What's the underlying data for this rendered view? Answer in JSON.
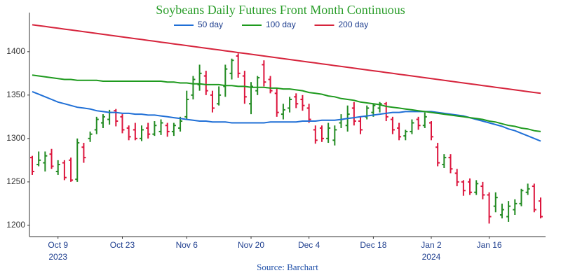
{
  "chart_data": {
    "type": "ohlc",
    "title": "Soybeans Daily Futures Front Month Continuous",
    "source": "Source: Barchart",
    "categories": [
      "2023-10-03",
      "2023-10-04",
      "2023-10-05",
      "2023-10-06",
      "2023-10-09",
      "2023-10-10",
      "2023-10-11",
      "2023-10-12",
      "2023-10-13",
      "2023-10-16",
      "2023-10-17",
      "2023-10-18",
      "2023-10-19",
      "2023-10-20",
      "2023-10-23",
      "2023-10-24",
      "2023-10-25",
      "2023-10-26",
      "2023-10-27",
      "2023-10-30",
      "2023-10-31",
      "2023-11-01",
      "2023-11-02",
      "2023-11-03",
      "2023-11-06",
      "2023-11-07",
      "2023-11-08",
      "2023-11-09",
      "2023-11-10",
      "2023-11-13",
      "2023-11-14",
      "2023-11-15",
      "2023-11-16",
      "2023-11-17",
      "2023-11-20",
      "2023-11-21",
      "2023-11-22",
      "2023-11-24",
      "2023-11-27",
      "2023-11-28",
      "2023-11-29",
      "2023-11-30",
      "2023-12-01",
      "2023-12-04",
      "2023-12-05",
      "2023-12-06",
      "2023-12-07",
      "2023-12-08",
      "2023-12-11",
      "2023-12-12",
      "2023-12-13",
      "2023-12-14",
      "2023-12-15",
      "2023-12-18",
      "2023-12-19",
      "2023-12-20",
      "2023-12-21",
      "2023-12-22",
      "2023-12-26",
      "2023-12-27",
      "2023-12-28",
      "2023-12-29",
      "2024-01-02",
      "2024-01-03",
      "2024-01-04",
      "2024-01-05",
      "2024-01-08",
      "2024-01-09",
      "2024-01-10",
      "2024-01-11",
      "2024-01-12",
      "2024-01-16",
      "2024-01-17",
      "2024-01-18",
      "2024-01-19",
      "2024-01-22",
      "2024-01-23",
      "2024-01-24",
      "2024-01-25",
      "2024-01-26"
    ],
    "open": [
      1278,
      1270,
      1272,
      1282,
      1262,
      1272,
      1275,
      1253,
      1290,
      1300,
      1310,
      1318,
      1322,
      1332,
      1325,
      1312,
      1310,
      1300,
      1312,
      1305,
      1308,
      1315,
      1308,
      1312,
      1325,
      1350,
      1362,
      1372,
      1350,
      1340,
      1360,
      1375,
      1395,
      1372,
      1340,
      1355,
      1385,
      1368,
      1352,
      1328,
      1335,
      1348,
      1345,
      1335,
      1310,
      1312,
      1300,
      1298,
      1318,
      1315,
      1335,
      1320,
      1325,
      1330,
      1335,
      1340,
      1322,
      1312,
      1303,
      1308,
      1322,
      1315,
      1318,
      1290,
      1270,
      1278,
      1260,
      1250,
      1250,
      1238,
      1245,
      1235,
      1222,
      1212,
      1210,
      1218,
      1225,
      1238,
      1245,
      1228
    ],
    "high": [
      1280,
      1285,
      1285,
      1288,
      1275,
      1275,
      1278,
      1300,
      1295,
      1308,
      1325,
      1328,
      1333,
      1334,
      1328,
      1315,
      1318,
      1315,
      1318,
      1320,
      1322,
      1318,
      1318,
      1325,
      1355,
      1372,
      1385,
      1378,
      1355,
      1360,
      1385,
      1392,
      1398,
      1378,
      1365,
      1372,
      1390,
      1372,
      1358,
      1340,
      1348,
      1352,
      1350,
      1340,
      1315,
      1315,
      1318,
      1315,
      1328,
      1338,
      1342,
      1325,
      1338,
      1340,
      1342,
      1342,
      1325,
      1318,
      1310,
      1322,
      1325,
      1330,
      1320,
      1295,
      1282,
      1282,
      1265,
      1252,
      1254,
      1252,
      1250,
      1238,
      1238,
      1225,
      1228,
      1230,
      1242,
      1248,
      1248,
      1232
    ],
    "low": [
      1258,
      1268,
      1262,
      1265,
      1258,
      1252,
      1250,
      1250,
      1272,
      1296,
      1305,
      1312,
      1316,
      1314,
      1306,
      1298,
      1298,
      1297,
      1300,
      1303,
      1304,
      1302,
      1303,
      1308,
      1322,
      1345,
      1355,
      1350,
      1330,
      1338,
      1348,
      1368,
      1370,
      1340,
      1328,
      1350,
      1360,
      1352,
      1325,
      1322,
      1330,
      1335,
      1332,
      1318,
      1294,
      1296,
      1295,
      1292,
      1312,
      1308,
      1315,
      1305,
      1322,
      1325,
      1330,
      1320,
      1305,
      1298,
      1298,
      1305,
      1310,
      1312,
      1298,
      1268,
      1266,
      1260,
      1245,
      1234,
      1235,
      1235,
      1230,
      1202,
      1215,
      1208,
      1204,
      1212,
      1222,
      1235,
      1215,
      1208
    ],
    "close": [
      1262,
      1275,
      1280,
      1268,
      1270,
      1255,
      1252,
      1295,
      1278,
      1305,
      1322,
      1325,
      1330,
      1320,
      1310,
      1302,
      1300,
      1310,
      1305,
      1315,
      1318,
      1308,
      1315,
      1320,
      1345,
      1368,
      1375,
      1355,
      1335,
      1350,
      1380,
      1390,
      1375,
      1348,
      1360,
      1370,
      1365,
      1355,
      1330,
      1333,
      1345,
      1340,
      1338,
      1322,
      1298,
      1300,
      1312,
      1310,
      1322,
      1328,
      1320,
      1310,
      1335,
      1338,
      1340,
      1325,
      1310,
      1302,
      1308,
      1318,
      1315,
      1325,
      1302,
      1272,
      1278,
      1265,
      1250,
      1240,
      1238,
      1248,
      1235,
      1210,
      1232,
      1218,
      1222,
      1225,
      1240,
      1242,
      1218,
      1210
    ],
    "up_color": "#228b22",
    "down_color": "#dc143c",
    "series": [
      {
        "name": "50 day",
        "color": "#1f6fd6",
        "values": [
          1354,
          1351,
          1348,
          1345,
          1342,
          1340,
          1338,
          1336,
          1335,
          1334,
          1332,
          1331,
          1330,
          1330,
          1329,
          1329,
          1328,
          1328,
          1327,
          1327,
          1326,
          1325,
          1324,
          1323,
          1322,
          1321,
          1320,
          1320,
          1319,
          1319,
          1319,
          1318,
          1318,
          1318,
          1318,
          1318,
          1318,
          1319,
          1319,
          1319,
          1319,
          1319,
          1320,
          1320,
          1320,
          1321,
          1321,
          1321,
          1322,
          1323,
          1324,
          1325,
          1326,
          1327,
          1328,
          1329,
          1330,
          1330,
          1331,
          1331,
          1331,
          1331,
          1331,
          1330,
          1329,
          1328,
          1327,
          1326,
          1324,
          1322,
          1320,
          1318,
          1316,
          1314,
          1311,
          1309,
          1306,
          1303,
          1300,
          1297
        ]
      },
      {
        "name": "100 day",
        "color": "#1e9a1e",
        "values": [
          1373,
          1372,
          1371,
          1370,
          1369,
          1368,
          1368,
          1367,
          1367,
          1367,
          1367,
          1366,
          1366,
          1366,
          1366,
          1366,
          1366,
          1366,
          1366,
          1366,
          1366,
          1365,
          1365,
          1364,
          1364,
          1363,
          1363,
          1362,
          1362,
          1362,
          1361,
          1361,
          1360,
          1360,
          1359,
          1359,
          1359,
          1358,
          1358,
          1357,
          1357,
          1356,
          1355,
          1353,
          1352,
          1351,
          1349,
          1348,
          1346,
          1345,
          1344,
          1342,
          1341,
          1340,
          1339,
          1337,
          1336,
          1335,
          1334,
          1333,
          1332,
          1331,
          1330,
          1329,
          1328,
          1327,
          1326,
          1325,
          1324,
          1323,
          1322,
          1320,
          1319,
          1317,
          1315,
          1314,
          1312,
          1311,
          1309,
          1308
        ]
      },
      {
        "name": "200 day",
        "color": "#d6243c",
        "values": [
          1431,
          1430,
          1429,
          1428,
          1427,
          1426,
          1425,
          1424,
          1423,
          1422,
          1421,
          1420,
          1419,
          1418,
          1417,
          1416,
          1415,
          1414,
          1413,
          1412,
          1411,
          1410,
          1409,
          1408,
          1407,
          1406,
          1405,
          1404,
          1403,
          1402,
          1401,
          1400,
          1399,
          1398,
          1397,
          1396,
          1395,
          1394,
          1393,
          1392,
          1391,
          1390,
          1389,
          1388,
          1387,
          1386,
          1385,
          1384,
          1383,
          1382,
          1381,
          1380,
          1379,
          1378,
          1377,
          1376,
          1375,
          1374,
          1373,
          1372,
          1371,
          1370,
          1369,
          1368,
          1367,
          1366,
          1365,
          1364,
          1363,
          1362,
          1361,
          1360,
          1359,
          1358,
          1357,
          1356,
          1355,
          1354,
          1353,
          1352
        ]
      }
    ],
    "ylim": [
      1187,
      1445
    ],
    "yticks": [
      1200,
      1250,
      1300,
      1350,
      1400
    ],
    "xticks": [
      {
        "value": "2023-10-09",
        "label": "Oct 9",
        "year": "2023"
      },
      {
        "value": "2023-10-23",
        "label": "Oct 23"
      },
      {
        "value": "2023-11-06",
        "label": "Nov 6"
      },
      {
        "value": "2023-11-20",
        "label": "Nov 20"
      },
      {
        "value": "2023-12-04",
        "label": "Dec 4"
      },
      {
        "value": "2023-12-18",
        "label": "Dec 18"
      },
      {
        "value": "2024-01-02",
        "label": "Jan 2",
        "year": "2024"
      },
      {
        "value": "2024-01-16",
        "label": "Jan 16"
      }
    ],
    "legend": "top",
    "grid": false
  }
}
